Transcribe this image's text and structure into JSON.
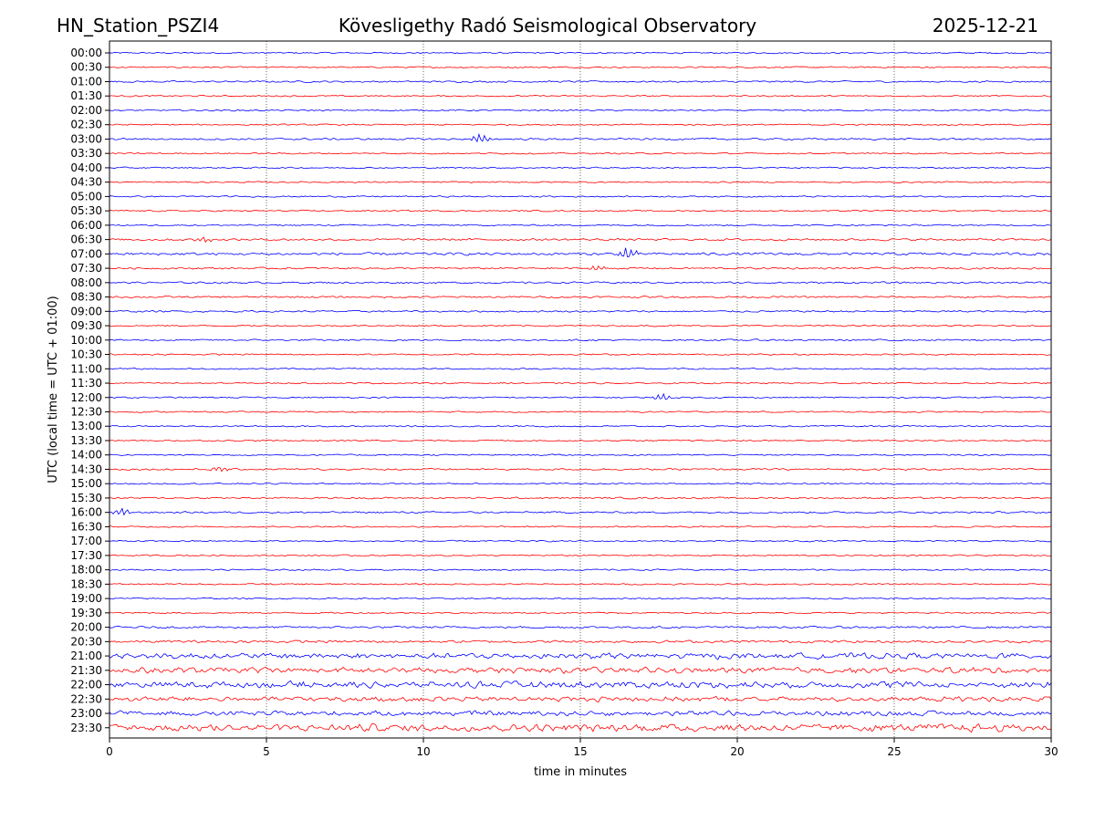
{
  "header": {
    "station": "HN_Station_PSZI4",
    "observatory": "Kövesligethy Radó Seismological Observatory",
    "date": "2025-12-21"
  },
  "chart_data": {
    "type": "line",
    "xlabel": "time in minutes",
    "ylabel": "UTC (local time = UTC + 01:00)",
    "xlim": [
      0,
      30
    ],
    "x_ticks": [
      "0",
      "5",
      "10",
      "15",
      "20",
      "25",
      "30"
    ],
    "grid": "vertical dotted lines at 5-minute intervals",
    "colors": {
      "even_rows": "#0000ff",
      "odd_rows": "#ff0000"
    },
    "rows": [
      {
        "label": "00:00",
        "color": "#0000ff",
        "amplitude": 1.0
      },
      {
        "label": "00:30",
        "color": "#ff0000",
        "amplitude": 1.0
      },
      {
        "label": "01:00",
        "color": "#0000ff",
        "amplitude": 1.2
      },
      {
        "label": "01:30",
        "color": "#ff0000",
        "amplitude": 1.0
      },
      {
        "label": "02:00",
        "color": "#0000ff",
        "amplitude": 1.0
      },
      {
        "label": "02:30",
        "color": "#ff0000",
        "amplitude": 1.0
      },
      {
        "label": "03:00",
        "color": "#0000ff",
        "amplitude": 1.3,
        "events": [
          {
            "t": 11.8,
            "amp": 5
          }
        ]
      },
      {
        "label": "03:30",
        "color": "#ff0000",
        "amplitude": 1.0
      },
      {
        "label": "04:00",
        "color": "#0000ff",
        "amplitude": 1.0
      },
      {
        "label": "04:30",
        "color": "#ff0000",
        "amplitude": 1.0
      },
      {
        "label": "05:00",
        "color": "#0000ff",
        "amplitude": 1.0
      },
      {
        "label": "05:30",
        "color": "#ff0000",
        "amplitude": 1.0
      },
      {
        "label": "06:00",
        "color": "#0000ff",
        "amplitude": 1.0
      },
      {
        "label": "06:30",
        "color": "#ff0000",
        "amplitude": 1.5,
        "events": [
          {
            "t": 3.0,
            "amp": 3
          }
        ]
      },
      {
        "label": "07:00",
        "color": "#0000ff",
        "amplitude": 1.8,
        "events": [
          {
            "t": 16.5,
            "amp": 7
          }
        ]
      },
      {
        "label": "07:30",
        "color": "#ff0000",
        "amplitude": 1.3,
        "events": [
          {
            "t": 15.5,
            "amp": 3
          }
        ]
      },
      {
        "label": "08:00",
        "color": "#0000ff",
        "amplitude": 1.3
      },
      {
        "label": "08:30",
        "color": "#ff0000",
        "amplitude": 1.3
      },
      {
        "label": "09:00",
        "color": "#0000ff",
        "amplitude": 1.2
      },
      {
        "label": "09:30",
        "color": "#ff0000",
        "amplitude": 1.0
      },
      {
        "label": "10:00",
        "color": "#0000ff",
        "amplitude": 1.2
      },
      {
        "label": "10:30",
        "color": "#ff0000",
        "amplitude": 1.0
      },
      {
        "label": "11:00",
        "color": "#0000ff",
        "amplitude": 1.0
      },
      {
        "label": "11:30",
        "color": "#ff0000",
        "amplitude": 1.0
      },
      {
        "label": "12:00",
        "color": "#0000ff",
        "amplitude": 1.0,
        "events": [
          {
            "t": 17.6,
            "amp": 4
          }
        ]
      },
      {
        "label": "12:30",
        "color": "#ff0000",
        "amplitude": 1.0
      },
      {
        "label": "13:00",
        "color": "#0000ff",
        "amplitude": 1.0
      },
      {
        "label": "13:30",
        "color": "#ff0000",
        "amplitude": 1.0
      },
      {
        "label": "14:00",
        "color": "#0000ff",
        "amplitude": 1.0
      },
      {
        "label": "14:30",
        "color": "#ff0000",
        "amplitude": 1.3,
        "events": [
          {
            "t": 3.5,
            "amp": 3
          }
        ]
      },
      {
        "label": "15:00",
        "color": "#0000ff",
        "amplitude": 1.0
      },
      {
        "label": "15:30",
        "color": "#ff0000",
        "amplitude": 1.2
      },
      {
        "label": "16:00",
        "color": "#0000ff",
        "amplitude": 1.3,
        "events": [
          {
            "t": 0.4,
            "amp": 4
          }
        ]
      },
      {
        "label": "16:30",
        "color": "#ff0000",
        "amplitude": 1.0
      },
      {
        "label": "17:00",
        "color": "#0000ff",
        "amplitude": 1.0
      },
      {
        "label": "17:30",
        "color": "#ff0000",
        "amplitude": 1.0
      },
      {
        "label": "18:00",
        "color": "#0000ff",
        "amplitude": 1.0
      },
      {
        "label": "18:30",
        "color": "#ff0000",
        "amplitude": 1.0
      },
      {
        "label": "19:00",
        "color": "#0000ff",
        "amplitude": 1.0
      },
      {
        "label": "19:30",
        "color": "#ff0000",
        "amplitude": 1.0
      },
      {
        "label": "20:00",
        "color": "#0000ff",
        "amplitude": 1.5
      },
      {
        "label": "20:30",
        "color": "#ff0000",
        "amplitude": 1.8
      },
      {
        "label": "21:00",
        "color": "#0000ff",
        "amplitude": 3.5
      },
      {
        "label": "21:30",
        "color": "#ff0000",
        "amplitude": 3.5
      },
      {
        "label": "22:00",
        "color": "#0000ff",
        "amplitude": 4.0
      },
      {
        "label": "22:30",
        "color": "#ff0000",
        "amplitude": 3.0
      },
      {
        "label": "23:00",
        "color": "#0000ff",
        "amplitude": 3.0
      },
      {
        "label": "23:30",
        "color": "#ff0000",
        "amplitude": 4.5
      }
    ]
  }
}
